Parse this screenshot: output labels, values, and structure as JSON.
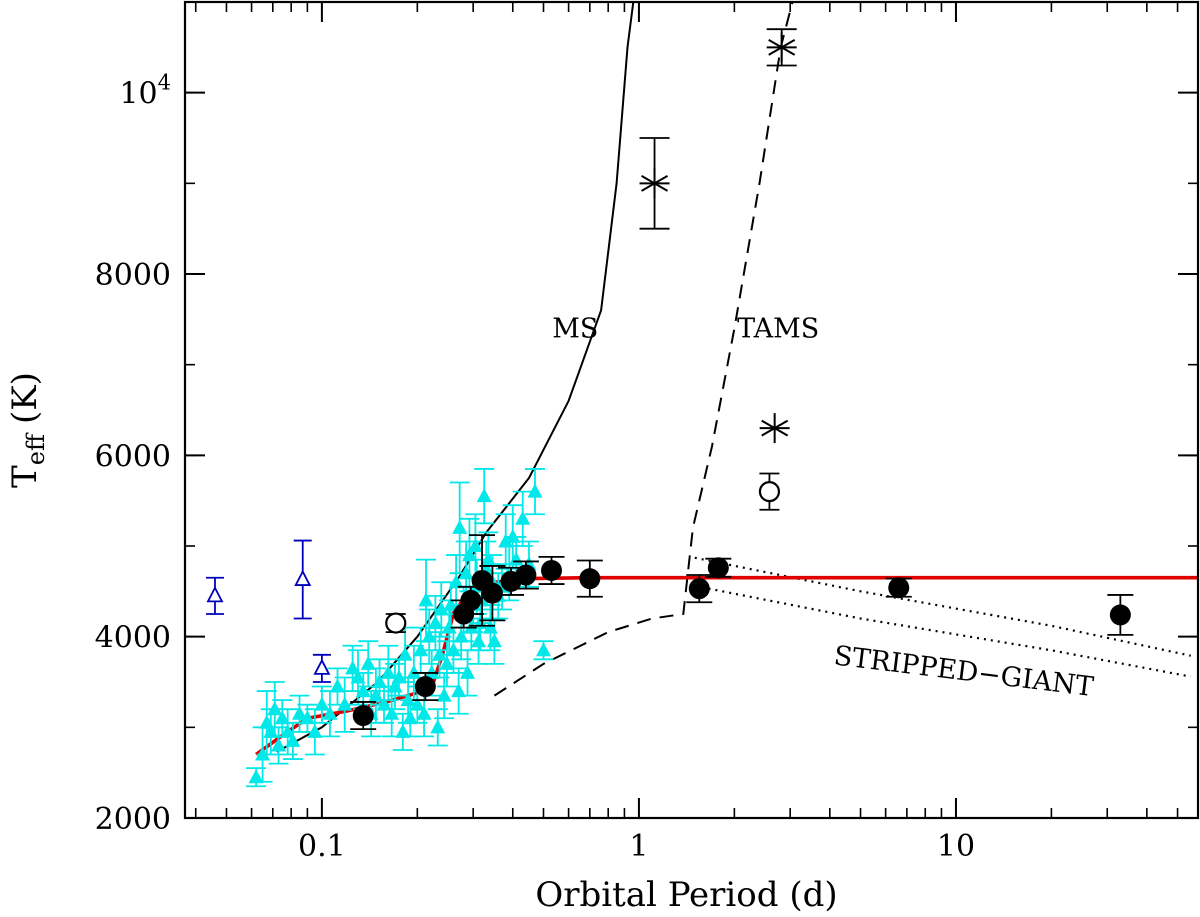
{
  "chart_data": {
    "type": "scatter",
    "xlabel": "Orbital Period (d)",
    "ylabel": "T",
    "ylabel_sub": "eff",
    "ylabel_unit": "(K)",
    "xscale": "log",
    "xlim": [
      0.037,
      58
    ],
    "ylim": [
      2000,
      11000
    ],
    "grid": false,
    "x_ticks": [
      {
        "value": 0.1,
        "label": "0.1"
      },
      {
        "value": 1,
        "label": "1"
      },
      {
        "value": 10,
        "label": "10"
      }
    ],
    "x_minor_ticks": [
      0.04,
      0.05,
      0.06,
      0.07,
      0.08,
      0.09,
      0.2,
      0.3,
      0.4,
      0.5,
      0.6,
      0.7,
      0.8,
      0.9,
      2,
      3,
      4,
      5,
      6,
      7,
      8,
      9,
      20,
      30,
      40,
      50
    ],
    "y_ticks": [
      {
        "value": 2000,
        "label": "2000"
      },
      {
        "value": 4000,
        "label": "4000"
      },
      {
        "value": 6000,
        "label": "6000"
      },
      {
        "value": 8000,
        "label": "8000"
      },
      {
        "value": 10000,
        "label": "10",
        "sup": "4"
      }
    ],
    "y_minor_step": 1000,
    "annotations": [
      {
        "text": "MS",
        "x": 0.63,
        "y": 7300
      },
      {
        "text": "TAMS",
        "x": 2.75,
        "y": 7300
      },
      {
        "text": "STRIPPED−GIANT",
        "x": 10.5,
        "y": 3520,
        "rotation": 7
      }
    ],
    "series": [
      {
        "marker": "filled-triangle",
        "color": "#00e8e8",
        "points": [
          [
            0.062,
            2450,
            100
          ],
          [
            0.065,
            2700,
            300
          ],
          [
            0.067,
            3050,
            350
          ],
          [
            0.069,
            2950,
            250
          ],
          [
            0.071,
            3200,
            300
          ],
          [
            0.073,
            2800,
            200
          ],
          [
            0.075,
            3100,
            200
          ],
          [
            0.078,
            2950,
            250
          ],
          [
            0.081,
            2850,
            200
          ],
          [
            0.085,
            3150,
            200
          ],
          [
            0.09,
            3100,
            150
          ],
          [
            0.095,
            2950,
            250
          ],
          [
            0.1,
            3250,
            200
          ],
          [
            0.106,
            3150,
            250
          ],
          [
            0.112,
            3450,
            200
          ],
          [
            0.118,
            3250,
            300
          ],
          [
            0.125,
            3650,
            250
          ],
          [
            0.13,
            3550,
            300
          ],
          [
            0.135,
            3400,
            200
          ],
          [
            0.14,
            3700,
            250
          ],
          [
            0.143,
            3150,
            250
          ],
          [
            0.148,
            3350,
            300
          ],
          [
            0.152,
            3500,
            250
          ],
          [
            0.157,
            3250,
            200
          ],
          [
            0.162,
            3600,
            300
          ],
          [
            0.166,
            3150,
            250
          ],
          [
            0.17,
            3450,
            250
          ],
          [
            0.175,
            3550,
            200
          ],
          [
            0.18,
            2950,
            200
          ],
          [
            0.183,
            3800,
            300
          ],
          [
            0.187,
            3300,
            250
          ],
          [
            0.19,
            3100,
            200
          ],
          [
            0.195,
            3600,
            300
          ],
          [
            0.2,
            3250,
            200
          ],
          [
            0.205,
            3850,
            250
          ],
          [
            0.21,
            3150,
            250
          ],
          [
            0.213,
            4400,
            450
          ],
          [
            0.218,
            4000,
            300
          ],
          [
            0.222,
            3600,
            250
          ],
          [
            0.228,
            4150,
            300
          ],
          [
            0.232,
            3000,
            200
          ],
          [
            0.235,
            3800,
            250
          ],
          [
            0.238,
            4300,
            300
          ],
          [
            0.243,
            3350,
            250
          ],
          [
            0.248,
            3700,
            250
          ],
          [
            0.252,
            4100,
            300
          ],
          [
            0.255,
            4350,
            250
          ],
          [
            0.26,
            3850,
            250
          ],
          [
            0.265,
            4600,
            300
          ],
          [
            0.27,
            3400,
            250
          ],
          [
            0.272,
            5200,
            500
          ],
          [
            0.275,
            4000,
            250
          ],
          [
            0.28,
            4250,
            300
          ],
          [
            0.285,
            4700,
            350
          ],
          [
            0.288,
            3600,
            250
          ],
          [
            0.292,
            4900,
            400
          ],
          [
            0.296,
            4100,
            250
          ],
          [
            0.3,
            4350,
            300
          ],
          [
            0.305,
            5000,
            350
          ],
          [
            0.308,
            4550,
            300
          ],
          [
            0.312,
            3950,
            250
          ],
          [
            0.316,
            4150,
            300
          ],
          [
            0.32,
            4400,
            250
          ],
          [
            0.325,
            5550,
            300
          ],
          [
            0.33,
            4750,
            300
          ],
          [
            0.335,
            4850,
            300
          ],
          [
            0.34,
            4100,
            250
          ],
          [
            0.345,
            4600,
            300
          ],
          [
            0.35,
            3950,
            250
          ],
          [
            0.36,
            4450,
            250
          ],
          [
            0.37,
            4550,
            250
          ],
          [
            0.38,
            5050,
            300
          ],
          [
            0.39,
            4700,
            300
          ],
          [
            0.4,
            5100,
            350
          ],
          [
            0.41,
            4850,
            250
          ],
          [
            0.43,
            5300,
            300
          ],
          [
            0.45,
            4800,
            250
          ],
          [
            0.47,
            5600,
            250
          ],
          [
            0.5,
            3850,
            100
          ]
        ]
      },
      {
        "marker": "open-triangle",
        "color": "#0000bb",
        "points": [
          [
            0.046,
            4450,
            200
          ],
          [
            0.087,
            4630,
            430
          ],
          [
            0.1,
            3650,
            150
          ]
        ]
      },
      {
        "marker": "filled-circle",
        "color": "#000000",
        "points": [
          [
            0.135,
            3130,
            150
          ],
          [
            0.212,
            3450,
            150
          ],
          [
            0.28,
            4250,
            150
          ],
          [
            0.295,
            4400,
            150
          ],
          [
            0.32,
            4620,
            500
          ],
          [
            0.345,
            4480,
            300
          ],
          [
            0.395,
            4610,
            150
          ],
          [
            0.44,
            4680,
            150
          ],
          [
            0.53,
            4730,
            150
          ],
          [
            0.7,
            4640,
            200
          ],
          [
            1.55,
            4530,
            150
          ],
          [
            1.78,
            4760,
            100
          ],
          [
            6.6,
            4540,
            100
          ],
          [
            33,
            4240,
            220
          ]
        ]
      },
      {
        "marker": "open-circle",
        "color": "#000000",
        "points": [
          [
            0.171,
            4150,
            100
          ],
          [
            2.58,
            5600,
            200
          ]
        ]
      },
      {
        "marker": "asterisk",
        "color": "#000000",
        "points": [
          [
            1.12,
            9000,
            500
          ],
          [
            2.82,
            10500,
            200
          ],
          [
            2.68,
            6300,
            0
          ]
        ]
      }
    ],
    "curves": [
      {
        "style": "solid",
        "color": "#000000",
        "points": [
          [
            0.072,
            2730
          ],
          [
            0.1,
            3000
          ],
          [
            0.15,
            3500
          ],
          [
            0.2,
            4000
          ],
          [
            0.27,
            4650
          ],
          [
            0.33,
            5150
          ],
          [
            0.45,
            5750
          ],
          [
            0.6,
            6600
          ],
          [
            0.76,
            7600
          ],
          [
            0.85,
            9000
          ],
          [
            0.92,
            10500
          ],
          [
            0.96,
            11000
          ]
        ]
      },
      {
        "style": "dashed",
        "color": "#000000",
        "points": [
          [
            0.35,
            3350
          ],
          [
            0.5,
            3700
          ],
          [
            0.8,
            4050
          ],
          [
            1.1,
            4200
          ],
          [
            1.38,
            4250
          ],
          [
            1.48,
            5200
          ],
          [
            1.7,
            6100
          ],
          [
            2.0,
            7400
          ],
          [
            2.4,
            9000
          ],
          [
            2.8,
            10500
          ],
          [
            3.05,
            11000
          ]
        ]
      },
      {
        "style": "dotted",
        "color": "#000000",
        "points": [
          [
            1.5,
            4870
          ],
          [
            5,
            4500
          ],
          [
            20,
            4120
          ],
          [
            55,
            3790
          ]
        ]
      },
      {
        "style": "dotted",
        "color": "#000000",
        "points": [
          [
            1.5,
            4560
          ],
          [
            5,
            4200
          ],
          [
            20,
            3850
          ],
          [
            55,
            3560
          ]
        ]
      },
      {
        "style": "solid-thick",
        "color": "#dd0000",
        "points": [
          [
            0.062,
            2700
          ],
          [
            0.075,
            2910
          ],
          [
            0.09,
            3100
          ],
          [
            0.12,
            3180
          ],
          [
            0.16,
            3280
          ],
          [
            0.2,
            3380
          ],
          [
            0.225,
            3500
          ],
          [
            0.24,
            3800
          ],
          [
            0.26,
            4260
          ],
          [
            0.29,
            4490
          ],
          [
            0.35,
            4600
          ],
          [
            0.45,
            4640
          ],
          [
            0.7,
            4650
          ],
          [
            1,
            4650
          ],
          [
            10,
            4650
          ],
          [
            58,
            4650
          ]
        ]
      }
    ]
  }
}
